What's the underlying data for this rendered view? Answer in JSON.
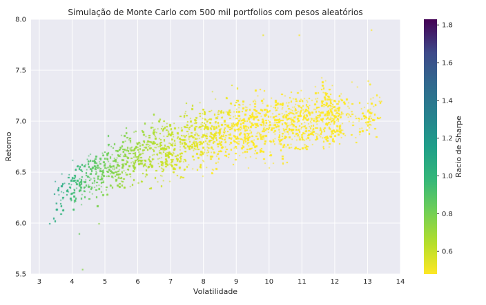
{
  "chart_data": {
    "type": "scatter",
    "title": "Simulação de Monte Carlo com 500 mil portfolios com pesos aleatórios",
    "xlabel": "Volatilidade",
    "ylabel": "Retorno",
    "xlim": [
      2.75,
      14
    ],
    "ylim": [
      5.5,
      8.0
    ],
    "x_ticks": [
      3,
      4,
      5,
      6,
      7,
      8,
      9,
      10,
      11,
      12,
      13,
      14
    ],
    "x_tick_labels": [
      "3",
      "4",
      "5",
      "6",
      "7",
      "8",
      "9",
      "10",
      "11",
      "12",
      "13",
      "14"
    ],
    "y_ticks": [
      5.5,
      6.0,
      6.5,
      7.0,
      7.5,
      8.0
    ],
    "y_tick_labels": [
      "5.5",
      "6.0",
      "6.5",
      "7.0",
      "7.5",
      "8.0"
    ],
    "grid": true,
    "colormap": "viridis_r",
    "colorbar": {
      "label": "Racio de Sharpe",
      "range": [
        0.48,
        1.83
      ],
      "ticks": [
        0.6,
        0.8,
        1.0,
        1.2,
        1.4,
        1.6,
        1.8
      ],
      "tick_labels": [
        "0.6",
        "0.8",
        "1.0",
        "1.2",
        "1.4",
        "1.6",
        "1.8"
      ]
    },
    "point_cloud": {
      "description_points": "sampled representation of the portfolio cloud",
      "core_points": [
        {
          "x": 3.3,
          "y": 6.0
        },
        {
          "x": 3.5,
          "y": 6.2
        },
        {
          "x": 4.0,
          "y": 6.3
        },
        {
          "x": 4.2,
          "y": 5.9
        },
        {
          "x": 4.8,
          "y": 6.0
        },
        {
          "x": 5.2,
          "y": 6.5
        },
        {
          "x": 6.0,
          "y": 6.4
        },
        {
          "x": 6.5,
          "y": 6.9
        },
        {
          "x": 7.0,
          "y": 6.6
        },
        {
          "x": 7.5,
          "y": 7.0
        },
        {
          "x": 8.0,
          "y": 6.7
        },
        {
          "x": 8.5,
          "y": 7.1
        },
        {
          "x": 9.0,
          "y": 6.8
        },
        {
          "x": 9.5,
          "y": 7.2
        },
        {
          "x": 10.0,
          "y": 7.0
        },
        {
          "x": 10.5,
          "y": 7.1
        },
        {
          "x": 11.0,
          "y": 7.2
        },
        {
          "x": 11.5,
          "y": 7.1
        },
        {
          "x": 12.0,
          "y": 7.2
        },
        {
          "x": 12.5,
          "y": 7.1
        },
        {
          "x": 13.0,
          "y": 7.4
        },
        {
          "x": 13.4,
          "y": 7.2
        },
        {
          "x": 13.1,
          "y": 7.9
        },
        {
          "x": 10.9,
          "y": 7.85
        },
        {
          "x": 9.8,
          "y": 7.85
        },
        {
          "x": 4.3,
          "y": 5.55
        }
      ]
    }
  }
}
